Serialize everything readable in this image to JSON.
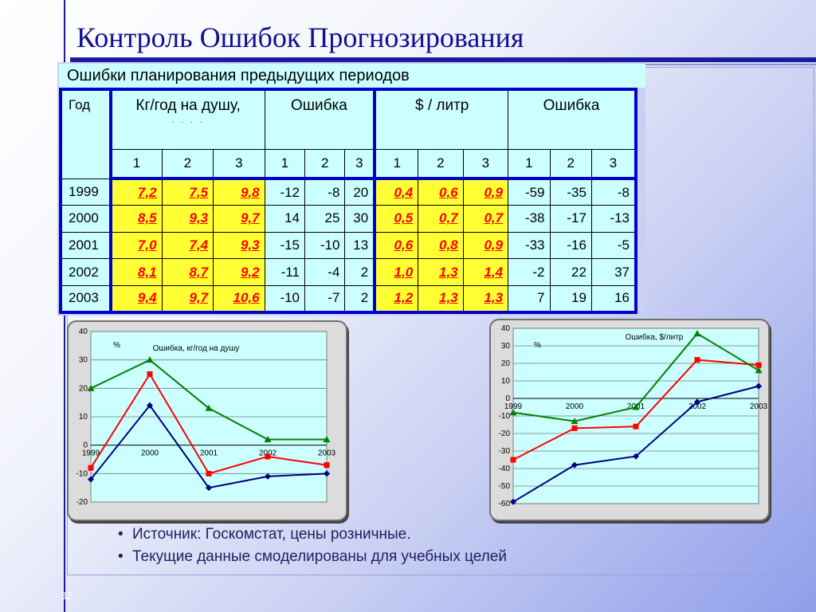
{
  "slide": {
    "title": "Контроль Ошибок Прогнозирования",
    "number": "- 32",
    "bullets": [
      "Источник: Госкомстат, цены розничные.",
      "Текущие данные смоделированы для учебных целей"
    ]
  },
  "table": {
    "caption": "Ошибки планирования предыдущих периодов",
    "header": {
      "year": "Год",
      "groups": [
        "Кг/год на душу,",
        "Ошибка",
        "$ / литр",
        "Ошибка"
      ],
      "sub": [
        "1",
        "2",
        "3",
        "1",
        "2",
        "3",
        "1",
        "2",
        "3",
        "1",
        "2",
        "3"
      ],
      "dots": ". . . ."
    },
    "rows": [
      {
        "year": "1999",
        "kg": [
          "7,2",
          "7,5",
          "9,8"
        ],
        "err1": [
          "-12",
          "-8",
          "20"
        ],
        "usd": [
          "0,4",
          "0,6",
          "0,9"
        ],
        "err2": [
          "-59",
          "-35",
          "-8"
        ]
      },
      {
        "year": "2000",
        "kg": [
          "8,5",
          "9,3",
          "9,7"
        ],
        "err1": [
          "14",
          "25",
          "30"
        ],
        "usd": [
          "0,5",
          "0,7",
          "0,7"
        ],
        "err2": [
          "-38",
          "-17",
          "-13"
        ]
      },
      {
        "year": "2001",
        "kg": [
          "7,0",
          "7,4",
          "9,3"
        ],
        "err1": [
          "-15",
          "-10",
          "13"
        ],
        "usd": [
          "0,6",
          "0,8",
          "0,9"
        ],
        "err2": [
          "-33",
          "-16",
          "-5"
        ]
      },
      {
        "year": "2002",
        "kg": [
          "8,1",
          "8,7",
          "9,2"
        ],
        "err1": [
          "-11",
          "-4",
          "2"
        ],
        "usd": [
          "1,0",
          "1,3",
          "1,4"
        ],
        "err2": [
          "-2",
          "22",
          "37"
        ]
      },
      {
        "year": "2003",
        "kg": [
          "9,4",
          "9,7",
          "10,6"
        ],
        "err1": [
          "-10",
          "-7",
          "2"
        ],
        "usd": [
          "1,2",
          "1,3",
          "1,3"
        ],
        "err2": [
          "7",
          "19",
          "16"
        ]
      }
    ]
  },
  "chart_data": [
    {
      "type": "line",
      "title": "Ошибка, кг/год на душу",
      "ylabel": "%",
      "categories": [
        "1999",
        "2000",
        "2001",
        "2002",
        "2003"
      ],
      "ylim": [
        -20,
        40
      ],
      "yticks": [
        "40",
        "30",
        "20",
        "10",
        "0",
        "-10",
        "-20"
      ],
      "series": [
        {
          "values": [
            -12,
            14,
            -15,
            -11,
            -10
          ],
          "color": "#000080"
        },
        {
          "values": [
            -8,
            25,
            -10,
            -4,
            -7
          ],
          "color": "#ff0000"
        },
        {
          "values": [
            20,
            30,
            13,
            2,
            2
          ],
          "color": "#008000"
        }
      ]
    },
    {
      "type": "line",
      "title": "Ошибка, $/литр",
      "ylabel": "%",
      "categories": [
        "1999",
        "2000",
        "2001",
        "2002",
        "2003"
      ],
      "ylim": [
        -60,
        40
      ],
      "yticks": [
        "40",
        "30",
        "20",
        "10",
        "0",
        "-10",
        "-20",
        "-30",
        "-40",
        "-50",
        "-60"
      ],
      "series": [
        {
          "values": [
            -59,
            -38,
            -33,
            -2,
            7
          ],
          "color": "#000080"
        },
        {
          "values": [
            -35,
            -17,
            -16,
            22,
            19
          ],
          "color": "#ff0000"
        },
        {
          "values": [
            -8,
            -13,
            -5,
            37,
            16
          ],
          "color": "#008000"
        }
      ]
    }
  ]
}
